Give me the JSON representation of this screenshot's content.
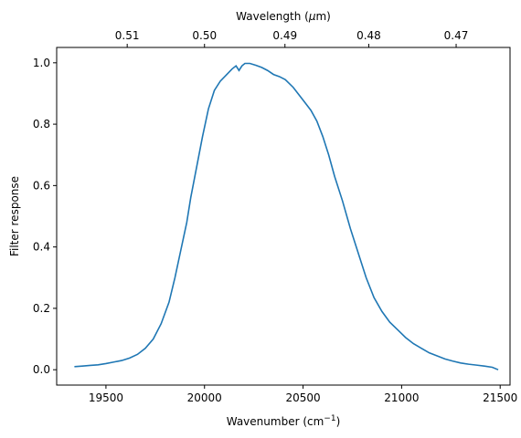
{
  "chart_data": {
    "type": "line",
    "xlabel": "Wavenumber (cm",
    "xlabel_sup": "−1",
    "xlabel_suffix": ")",
    "ylabel": "Filter response",
    "top_xlabel": "Wavelength (",
    "top_xlabel_mu": "μ",
    "top_xlabel_suffix": "m)",
    "xlim": [
      19250,
      21550
    ],
    "ylim": [
      -0.05,
      1.05
    ],
    "x_ticks": [
      19500,
      20000,
      20500,
      21000,
      21500
    ],
    "x_tick_labels": [
      "19500",
      "20000",
      "20500",
      "21000",
      "21500"
    ],
    "y_ticks": [
      0.0,
      0.2,
      0.4,
      0.6,
      0.8,
      1.0
    ],
    "y_tick_labels": [
      "0.0",
      "0.2",
      "0.4",
      "0.6",
      "0.8",
      "1.0"
    ],
    "top_ticks_um": [
      0.51,
      0.5,
      0.49,
      0.48,
      0.47
    ],
    "top_tick_labels": [
      "0.51",
      "0.50",
      "0.49",
      "0.48",
      "0.47"
    ],
    "line_color": "#1f77b4",
    "grid": false,
    "series": [
      {
        "x": [
          19340,
          19380,
          19420,
          19460,
          19500,
          19540,
          19580,
          19620,
          19660,
          19700,
          19740,
          19780,
          19820,
          19850,
          19880,
          19910,
          19930,
          19960,
          19990,
          20020,
          20050,
          20080,
          20110,
          20140,
          20160,
          20175,
          20190,
          20205,
          20230,
          20260,
          20290,
          20320,
          20350,
          20380,
          20410,
          20450,
          20480,
          20510,
          20540,
          20570,
          20600,
          20630,
          20660,
          20700,
          20740,
          20780,
          20820,
          20860,
          20900,
          20940,
          20980,
          21020,
          21060,
          21100,
          21140,
          21180,
          21220,
          21260,
          21300,
          21340,
          21380,
          21420,
          21460,
          21490
        ],
        "y": [
          0.01,
          0.012,
          0.014,
          0.016,
          0.02,
          0.025,
          0.03,
          0.038,
          0.05,
          0.07,
          0.1,
          0.15,
          0.22,
          0.3,
          0.39,
          0.48,
          0.56,
          0.66,
          0.76,
          0.85,
          0.91,
          0.94,
          0.96,
          0.98,
          0.99,
          0.975,
          0.99,
          0.998,
          0.998,
          0.992,
          0.985,
          0.975,
          0.962,
          0.955,
          0.945,
          0.92,
          0.895,
          0.87,
          0.845,
          0.81,
          0.76,
          0.7,
          0.63,
          0.55,
          0.46,
          0.38,
          0.3,
          0.235,
          0.19,
          0.155,
          0.13,
          0.105,
          0.085,
          0.07,
          0.055,
          0.045,
          0.035,
          0.028,
          0.022,
          0.018,
          0.015,
          0.012,
          0.008,
          0.0
        ]
      }
    ]
  }
}
